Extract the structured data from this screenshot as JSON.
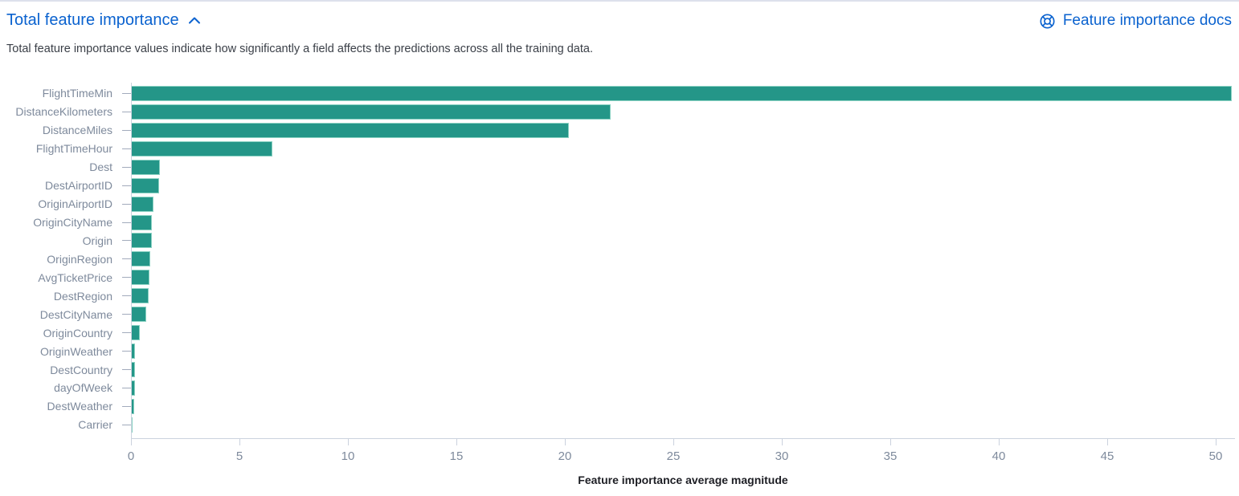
{
  "header": {
    "title": "Total feature importance",
    "docs_label": "Feature importance docs"
  },
  "description": "Total feature importance values indicate how significantly a field affects the predictions across all the training data.",
  "colors": {
    "link_blue": "#0a62cf",
    "bar_fill": "#249688",
    "bar_border": "#8bd2c3",
    "axis_line": "#cbd2de",
    "axis_label_text": "#7e8a9c",
    "axis_title_text": "#1d1e24",
    "description_text": "#3a3f47"
  },
  "chart_data": {
    "type": "bar",
    "orientation": "horizontal",
    "title": "Total feature importance",
    "xlabel": "Feature importance average magnitude",
    "ylabel": "",
    "xlim": [
      0,
      50.85
    ],
    "x_ticks": [
      0,
      5,
      10,
      15,
      20,
      25,
      30,
      35,
      40,
      45,
      50
    ],
    "grid": false,
    "legend": false,
    "categories": [
      "FlightTimeMin",
      "DistanceKilometers",
      "DistanceMiles",
      "FlightTimeHour",
      "Dest",
      "DestAirportID",
      "OriginAirportID",
      "OriginCityName",
      "Origin",
      "OriginRegion",
      "AvgTicketPrice",
      "DestRegion",
      "DestCityName",
      "OriginCountry",
      "OriginWeather",
      "DestCountry",
      "dayOfWeek",
      "DestWeather",
      "Carrier"
    ],
    "values": [
      50.75,
      22.1,
      20.2,
      6.5,
      1.35,
      1.3,
      1.05,
      0.97,
      0.95,
      0.9,
      0.85,
      0.8,
      0.72,
      0.42,
      0.2,
      0.18,
      0.17,
      0.16,
      0.05
    ]
  }
}
